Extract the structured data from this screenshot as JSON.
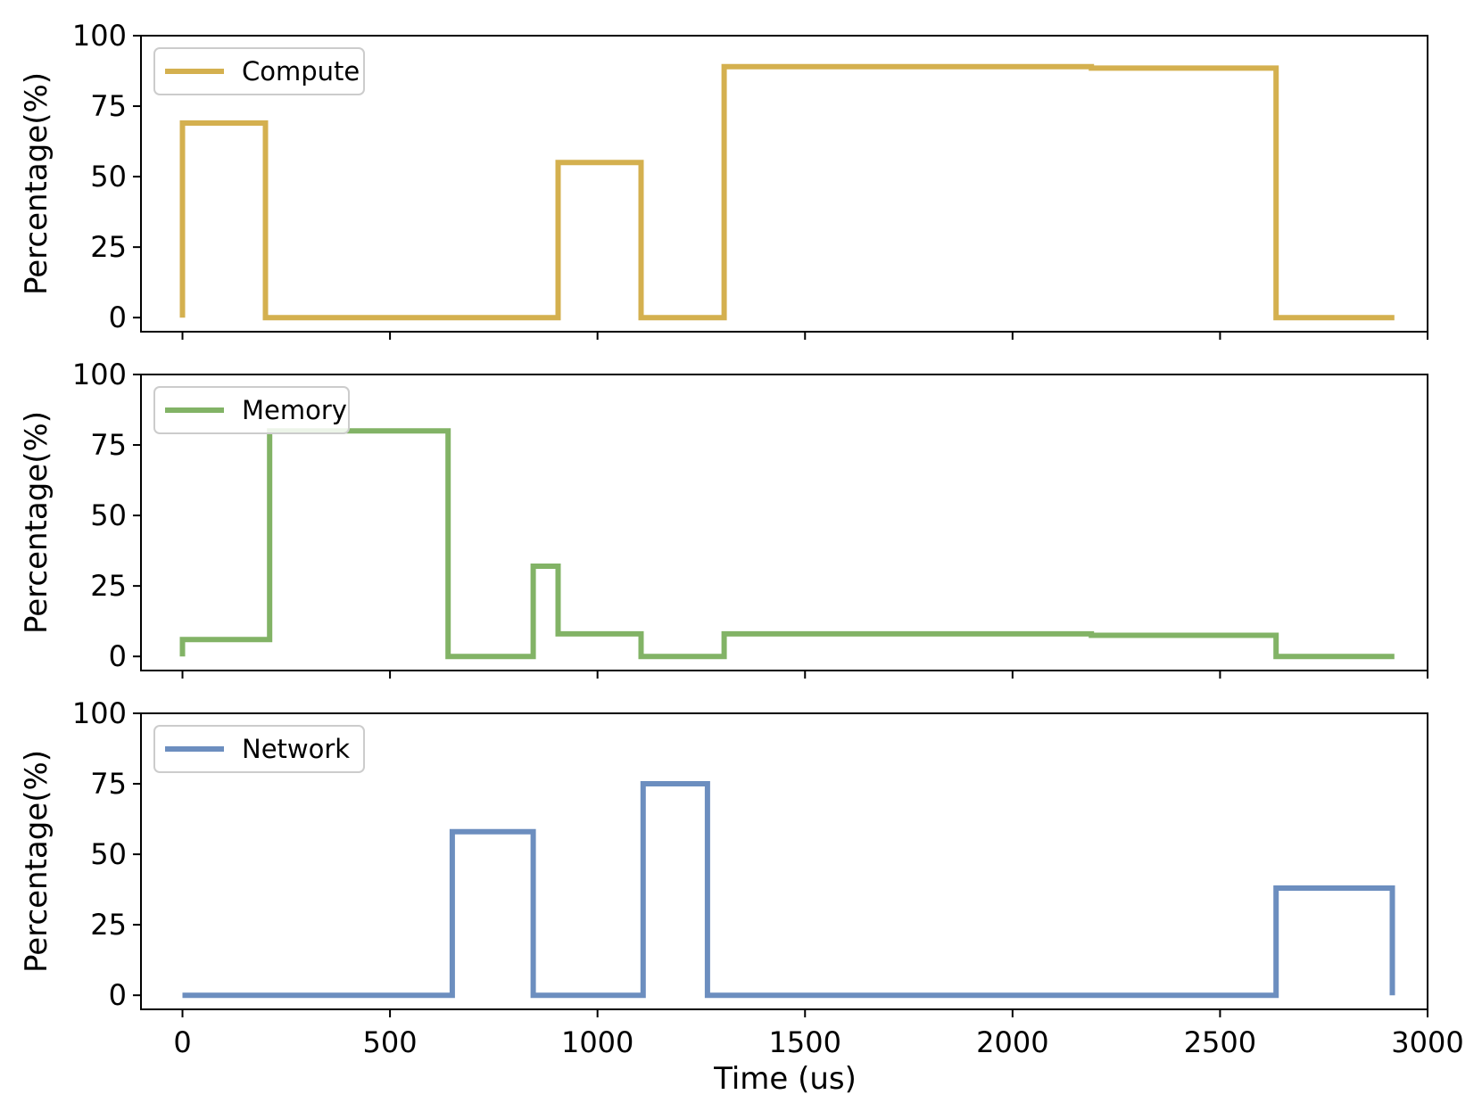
{
  "chart_data": {
    "type": "line",
    "step": true,
    "xlabel": "Time (us)",
    "xlim": [
      -100,
      3000
    ],
    "xticks": [
      0,
      500,
      1000,
      1500,
      2000,
      2500,
      3000
    ],
    "ylim": [
      -5,
      100
    ],
    "yticks": [
      0,
      25,
      50,
      75,
      100
    ],
    "ylabel": "Percentage(%)",
    "legend_position": "upper-left",
    "panels": [
      {
        "name": "Compute",
        "color": "#D4B04F",
        "points": [
          [
            0,
            0
          ],
          [
            0,
            69
          ],
          [
            200,
            69
          ],
          [
            200,
            0
          ],
          [
            905,
            0
          ],
          [
            905,
            55
          ],
          [
            1105,
            55
          ],
          [
            1105,
            0
          ],
          [
            1305,
            0
          ],
          [
            1305,
            89
          ],
          [
            2190,
            89
          ],
          [
            2190,
            88.5
          ],
          [
            2635,
            88.5
          ],
          [
            2635,
            0
          ],
          [
            2920,
            0
          ]
        ]
      },
      {
        "name": "Memory",
        "color": "#82B366",
        "points": [
          [
            0,
            0
          ],
          [
            0,
            6
          ],
          [
            210,
            6
          ],
          [
            210,
            80
          ],
          [
            640,
            80
          ],
          [
            640,
            0
          ],
          [
            845,
            0
          ],
          [
            845,
            32
          ],
          [
            905,
            32
          ],
          [
            905,
            8
          ],
          [
            1105,
            8
          ],
          [
            1105,
            0
          ],
          [
            1305,
            0
          ],
          [
            1305,
            8
          ],
          [
            2190,
            8
          ],
          [
            2190,
            7.5
          ],
          [
            2635,
            7.5
          ],
          [
            2635,
            0
          ],
          [
            2920,
            0
          ]
        ]
      },
      {
        "name": "Network",
        "color": "#6C8EBF",
        "points": [
          [
            0,
            0
          ],
          [
            650,
            0
          ],
          [
            650,
            58
          ],
          [
            845,
            58
          ],
          [
            845,
            0
          ],
          [
            1110,
            0
          ],
          [
            1110,
            75
          ],
          [
            1265,
            75
          ],
          [
            1265,
            0
          ],
          [
            2635,
            0
          ],
          [
            2635,
            38
          ],
          [
            2915,
            38
          ],
          [
            2915,
            0
          ]
        ]
      }
    ]
  }
}
